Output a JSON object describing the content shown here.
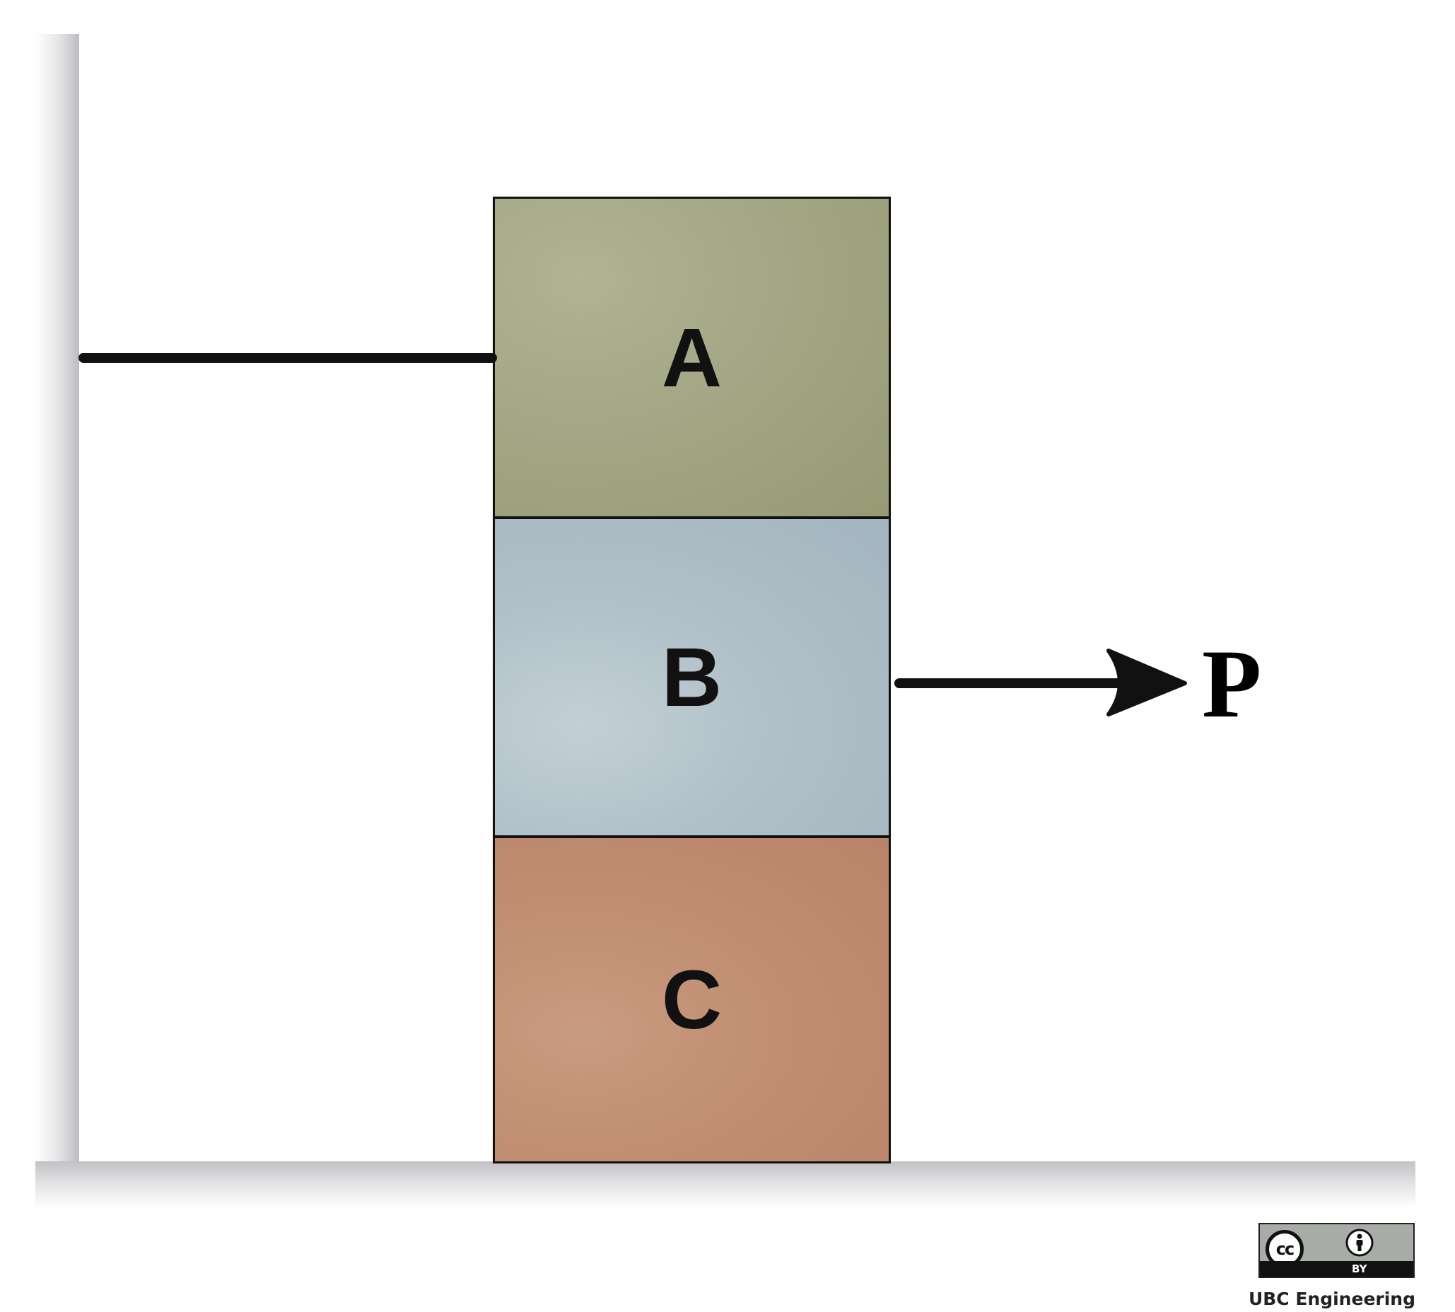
{
  "diagram": {
    "blocks": [
      {
        "id": "A",
        "label": "A",
        "color": "#a4a785"
      },
      {
        "id": "B",
        "label": "B",
        "color": "#b0c0c8"
      },
      {
        "id": "C",
        "label": "C",
        "color": "#c08d70"
      }
    ],
    "force": {
      "label": "P",
      "direction": "right",
      "applied_to": "B"
    },
    "tether": {
      "from": "wall",
      "to": "A"
    }
  },
  "license": {
    "badge_text": "BY",
    "cc_text": "cc",
    "icons": [
      "cc-icon",
      "by-person-icon"
    ]
  },
  "credit": "UBC Engineering"
}
